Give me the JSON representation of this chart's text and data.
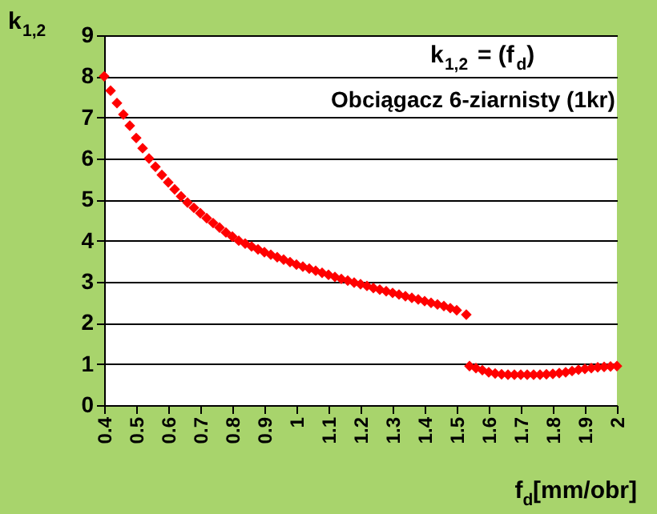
{
  "chart_data": {
    "type": "scatter",
    "title": "k$_{1,2}$ = (f$_{d}$)",
    "subtitle": "Obciągacz 6-ziarnisty (1kr)",
    "xlabel": "f$_{d}$[mm/obr]",
    "ylabel": "k$_{1,2}$",
    "x": [
      0.4,
      0.42,
      0.44,
      0.46,
      0.48,
      0.5,
      0.52,
      0.54,
      0.56,
      0.58,
      0.6,
      0.62,
      0.64,
      0.66,
      0.68,
      0.7,
      0.72,
      0.74,
      0.76,
      0.78,
      0.8,
      0.82,
      0.84,
      0.86,
      0.88,
      0.9,
      0.92,
      0.94,
      0.96,
      0.98,
      1.0,
      1.02,
      1.04,
      1.06,
      1.08,
      1.1,
      1.12,
      1.14,
      1.16,
      1.18,
      1.2,
      1.22,
      1.24,
      1.26,
      1.28,
      1.3,
      1.32,
      1.34,
      1.36,
      1.38,
      1.4,
      1.42,
      1.44,
      1.46,
      1.48,
      1.5,
      1.53,
      1.54,
      1.56,
      1.58,
      1.6,
      1.62,
      1.64,
      1.66,
      1.68,
      1.7,
      1.72,
      1.74,
      1.76,
      1.78,
      1.8,
      1.82,
      1.84,
      1.86,
      1.88,
      1.9,
      1.92,
      1.94,
      1.96,
      1.98,
      2.0
    ],
    "series": [
      {
        "color": "#ff0000",
        "values": [
          8.0,
          7.65,
          7.35,
          7.07,
          6.8,
          6.5,
          6.25,
          6.0,
          5.8,
          5.6,
          5.42,
          5.25,
          5.08,
          4.93,
          4.8,
          4.67,
          4.55,
          4.43,
          4.32,
          4.2,
          4.1,
          4.0,
          3.93,
          3.86,
          3.79,
          3.72,
          3.66,
          3.6,
          3.54,
          3.48,
          3.42,
          3.37,
          3.32,
          3.27,
          3.22,
          3.17,
          3.12,
          3.07,
          3.03,
          2.98,
          2.94,
          2.9,
          2.85,
          2.81,
          2.77,
          2.73,
          2.69,
          2.65,
          2.61,
          2.57,
          2.53,
          2.49,
          2.45,
          2.41,
          2.36,
          2.31,
          2.2,
          0.95,
          0.9,
          0.85,
          0.8,
          0.77,
          0.75,
          0.74,
          0.74,
          0.74,
          0.74,
          0.74,
          0.74,
          0.75,
          0.76,
          0.78,
          0.8,
          0.83,
          0.86,
          0.88,
          0.9,
          0.92,
          0.93,
          0.94,
          0.95
        ]
      }
    ],
    "xlim": [
      0.4,
      2.0
    ],
    "xticks": [
      0.4,
      0.5,
      0.6,
      0.7,
      0.8,
      0.9,
      1,
      1.1,
      1.2,
      1.3,
      1.4,
      1.5,
      1.6,
      1.7,
      1.8,
      1.9,
      2
    ],
    "ylim": [
      0,
      9
    ],
    "yticks": [
      0,
      1,
      2,
      3,
      4,
      5,
      6,
      7,
      8,
      9
    ],
    "grid": "y",
    "legend": false,
    "marker": "diamond"
  }
}
